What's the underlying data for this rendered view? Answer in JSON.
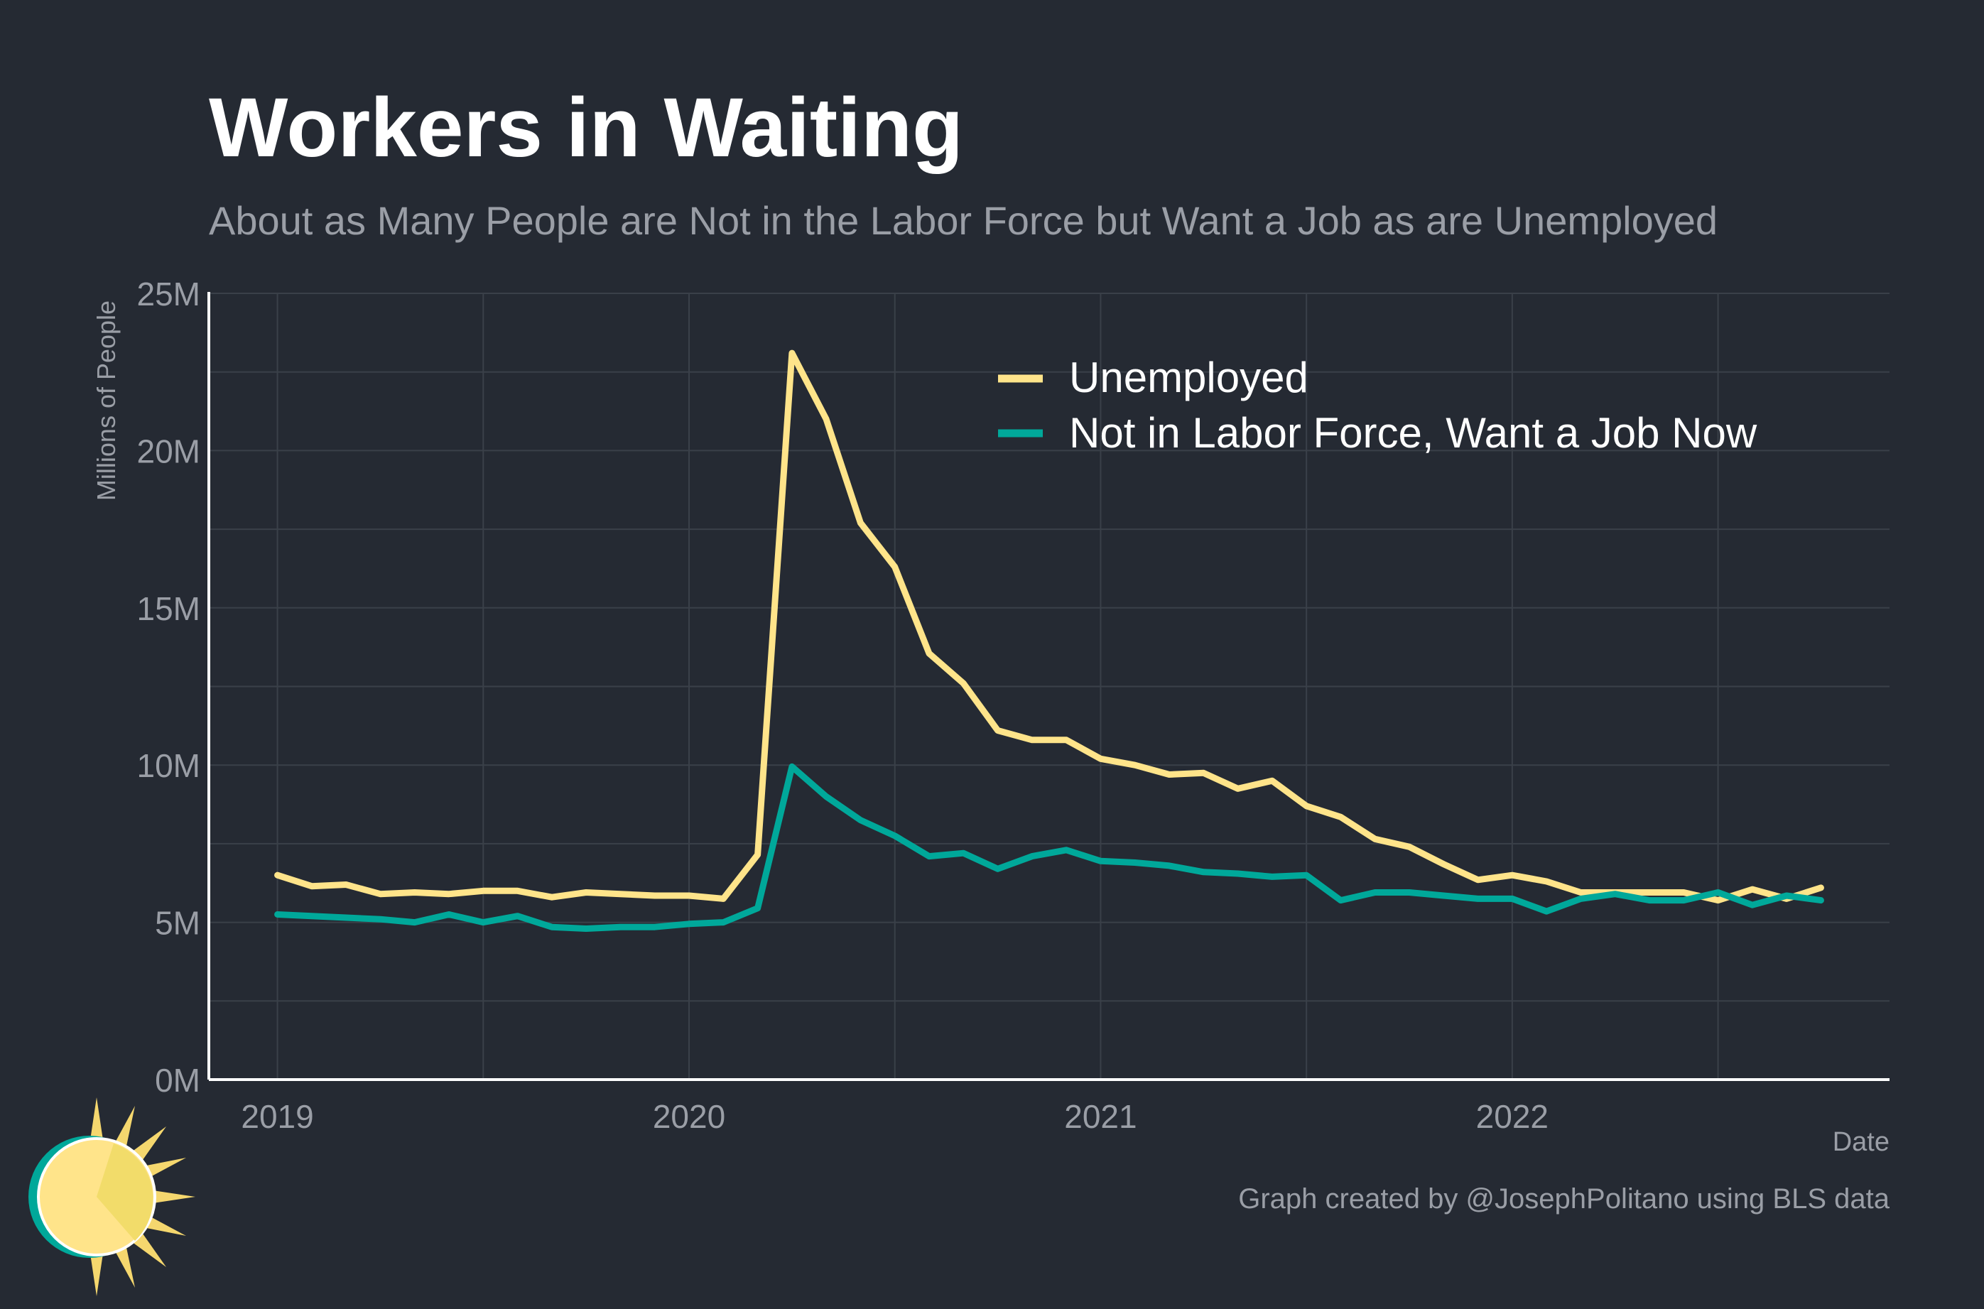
{
  "colors": {
    "background": "#252a33",
    "grid": "#3a4049",
    "axis": "#ffffff",
    "unemployed": "#ffe48a",
    "nilf": "#00a89a",
    "text_muted": "#9a9ea6"
  },
  "icon": "sun-logo-icon",
  "chart_data": {
    "type": "line",
    "title": "Workers in Waiting",
    "subtitle": "About as Many People are Not in the Labor Force but Want a Job as are Unemployed",
    "xlabel": "Date",
    "ylabel": "Millions of People",
    "caption": "Graph created by @JosephPolitano using BLS data",
    "x_start": "2019-01",
    "x_end": "2022-09",
    "xlim": [
      "2018-11",
      "2022-12"
    ],
    "ylim": [
      0,
      25
    ],
    "x_ticks": [
      {
        "date": "2019-01",
        "label": "2019"
      },
      {
        "date": "2020-01",
        "label": "2020"
      },
      {
        "date": "2021-01",
        "label": "2021"
      },
      {
        "date": "2022-01",
        "label": "2022"
      }
    ],
    "y_ticks": [
      {
        "value": 0,
        "label": "0M"
      },
      {
        "value": 5,
        "label": "5M"
      },
      {
        "value": 10,
        "label": "10M"
      },
      {
        "value": 15,
        "label": "15M"
      },
      {
        "value": 20,
        "label": "20M"
      },
      {
        "value": 25,
        "label": "25M"
      }
    ],
    "grid": true,
    "legend_position": "top-right",
    "series": [
      {
        "name": "Unemployed",
        "color": "#ffe48a",
        "values": [
          6.5,
          6.15,
          6.2,
          5.9,
          5.95,
          5.9,
          6.0,
          6.0,
          5.8,
          5.95,
          5.9,
          5.85,
          5.85,
          5.75,
          7.15,
          23.1,
          21.0,
          17.7,
          16.3,
          13.55,
          12.6,
          11.1,
          10.8,
          10.8,
          10.2,
          10.0,
          9.7,
          9.75,
          9.25,
          9.5,
          8.7,
          8.35,
          7.65,
          7.4,
          6.85,
          6.35,
          6.5,
          6.3,
          5.95,
          5.95,
          5.95,
          5.95,
          5.7,
          6.05,
          5.75,
          6.1
        ]
      },
      {
        "name": "Not in Labor Force, Want a Job Now",
        "color": "#00a89a",
        "values": [
          5.25,
          5.2,
          5.15,
          5.1,
          5.0,
          5.25,
          5.0,
          5.2,
          4.85,
          4.8,
          4.85,
          4.85,
          4.95,
          5.0,
          5.45,
          9.95,
          9.0,
          8.25,
          7.75,
          7.1,
          7.2,
          6.7,
          7.1,
          7.3,
          6.95,
          6.9,
          6.8,
          6.6,
          6.55,
          6.45,
          6.5,
          5.7,
          5.95,
          5.95,
          5.85,
          5.75,
          5.75,
          5.35,
          5.75,
          5.9,
          5.7,
          5.7,
          5.95,
          5.55,
          5.85,
          5.7
        ]
      }
    ]
  }
}
